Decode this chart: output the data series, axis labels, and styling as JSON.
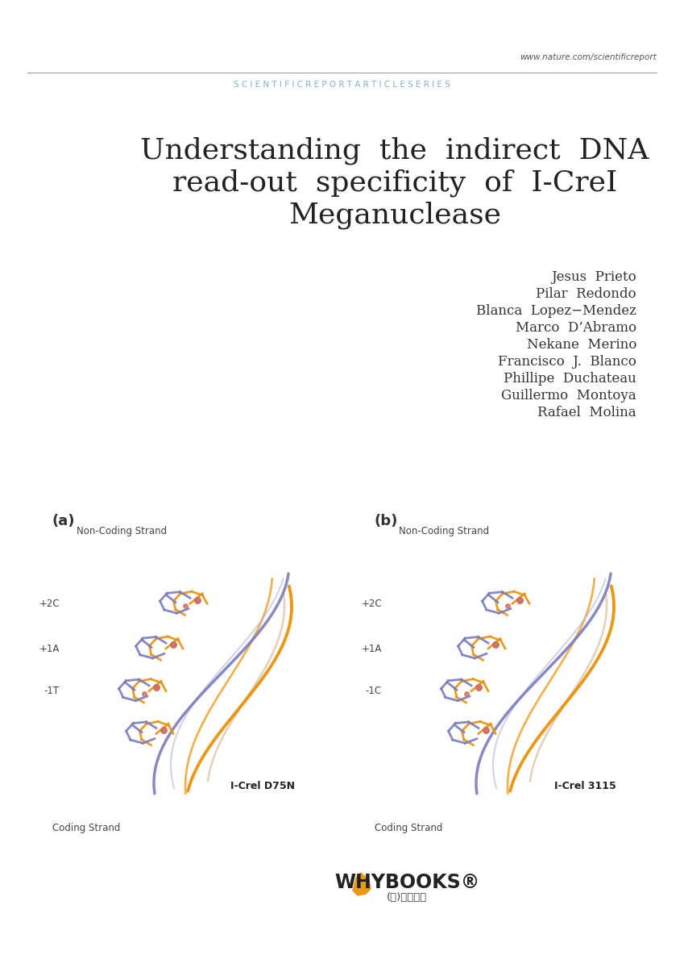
{
  "url_text": "www.nature.com/scientificreport",
  "header_text": "S C I E N T I F I C R E P O R T A R T I C L E S E R I E S",
  "header_color": "#7fb3c8",
  "header_line_color": "#999999",
  "title_line1": "Understanding  the  indirect  DNA",
  "title_line2": "read-out  specificity  of  I-CreI",
  "title_line3": "Meganuclease",
  "title_fontsize": 26,
  "title_color": "#222222",
  "authors": [
    "Jesus  Prieto",
    "Pilar  Redondo",
    "Blanca  Lopez−Mendez",
    "Marco  D’Abramo",
    "Nekane  Merino",
    "Francisco  J.  Blanco",
    "Phillipe  Duchateau",
    "Guillermo  Montoya",
    "Rafael  Molina"
  ],
  "author_fontsize": 12,
  "author_color": "#333333",
  "panel_a_label": "(a)",
  "panel_b_label": "(b)",
  "label_a_noncoding": "Non-Coding Strand",
  "label_b_noncoding": "Non-Coding Strand",
  "label_a_coding": "Coding Strand",
  "label_b_coding": "Coding Strand",
  "label_a_2c": "+2C",
  "label_a_1a": "+1A",
  "label_a_1t": "-1T",
  "label_b_2c": "+2C",
  "label_b_1a": "+1A",
  "label_b_1c": "-1C",
  "panel_a_title": "I-Crel D75N",
  "panel_b_title": "I-Crel 3115",
  "background_color": "#ffffff",
  "whybooks_text": "WHYBOOKS®",
  "whybooks_korean": "(주)와이북스",
  "orange_color": "#e8930a",
  "blue_color": "#7b7bbf",
  "red_color": "#c97060",
  "tan_color": "#d4b896",
  "lightblue_color": "#b0b8d8"
}
